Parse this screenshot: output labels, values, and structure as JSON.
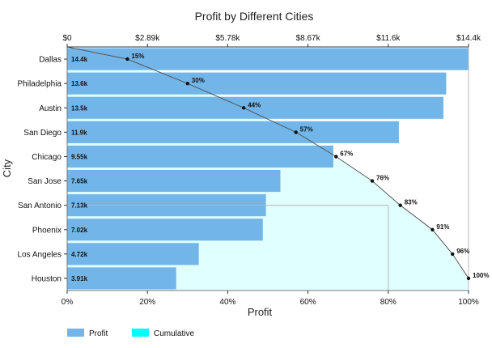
{
  "chart_data": {
    "type": "bar",
    "orientation": "horizontal",
    "title": "Profit by Different Cities",
    "xlabel": "Profit",
    "ylabel": "City",
    "categories": [
      "Dallas",
      "Philadelphia",
      "Austin",
      "San Diego",
      "Chicago",
      "San Jose",
      "San Antonio",
      "Phoenix",
      "Los Angeles",
      "Houston"
    ],
    "series": [
      {
        "name": "Profit",
        "values": [
          14400,
          13600,
          13500,
          11900,
          9550,
          7650,
          7130,
          7020,
          4720,
          3910
        ],
        "labels": [
          "14.4k",
          "13.6k",
          "13.5k",
          "11.9k",
          "9.55k",
          "7.65k",
          "7.13k",
          "7.02k",
          "4.72k",
          "3.91k"
        ],
        "color": "#72b5e8"
      },
      {
        "name": "Cumulative",
        "values": [
          15,
          30,
          44,
          57,
          67,
          76,
          83,
          91,
          96,
          100
        ],
        "labels": [
          "15%",
          "30%",
          "44%",
          "57%",
          "67%",
          "76%",
          "83%",
          "91%",
          "96%",
          "100%"
        ],
        "color": "#00ffff"
      }
    ],
    "top_axis": {
      "ticks": [
        "$0",
        "$2.89k",
        "$5.78k",
        "$8.67k",
        "$11.6k",
        "$14.4k"
      ],
      "range": [
        0,
        14400
      ]
    },
    "bottom_axis": {
      "ticks": [
        "0%",
        "20%",
        "40%",
        "60%",
        "80%",
        "100%"
      ],
      "range": [
        0,
        100
      ]
    },
    "pareto_threshold": 80,
    "legend": {
      "position": "bottom-left",
      "entries": [
        "Profit",
        "Cumulative"
      ]
    }
  }
}
